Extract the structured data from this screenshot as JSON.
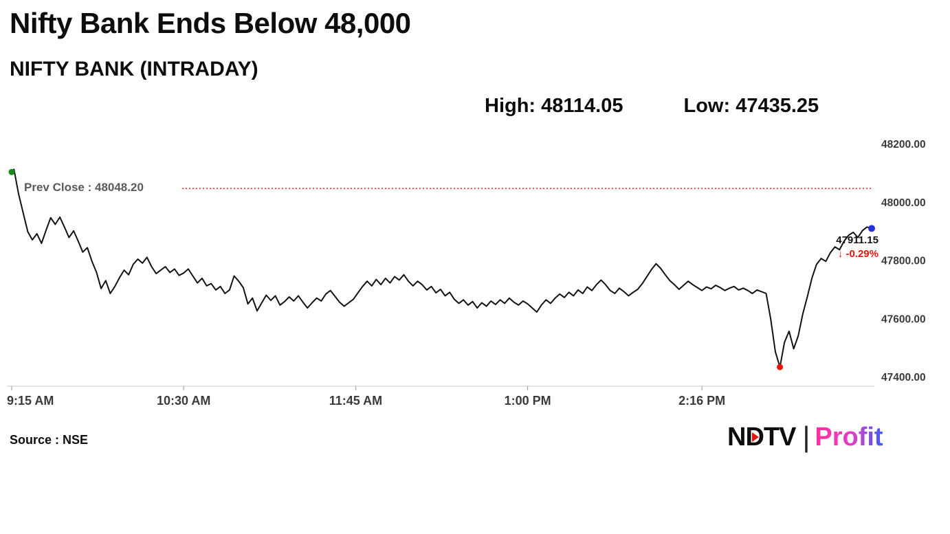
{
  "header": {
    "title": "Nifty Bank Ends Below 48,000",
    "subtitle": "NIFTY BANK (INTRADAY)",
    "high_label": "High: 48114.05",
    "low_label": "Low: 47435.25"
  },
  "footer": {
    "source": "Source : NSE",
    "logo": {
      "ndtv": "NDTV",
      "divider": "|",
      "profit": "Profit"
    }
  },
  "chart_data": {
    "type": "line",
    "title": "NIFTY BANK (INTRADAY)",
    "line_color": "#111111",
    "x_axis": {
      "tick_labels": [
        "9:15 AM",
        "10:30 AM",
        "11:45 AM",
        "1:00 PM",
        "2:16 PM"
      ],
      "tick_minutes": [
        0,
        75,
        150,
        225,
        301
      ],
      "domain_minutes": [
        0,
        375
      ]
    },
    "y_axis": {
      "tick_labels": [
        "48200.00",
        "48000.00",
        "47800.00",
        "47600.00",
        "47400.00"
      ],
      "tick_values": [
        48200,
        48000,
        47800,
        47600,
        47400
      ],
      "range": [
        47400,
        48200
      ],
      "grid": false
    },
    "prev_close": {
      "label": "Prev Close : 48048.20",
      "value": 48048.2,
      "color": "#d93025"
    },
    "last_price": {
      "label": "47911.15",
      "change_label": "↓ -0.29%",
      "value": 47911.15,
      "change_pct": -0.29
    },
    "high": 48114.05,
    "low": 47435.25,
    "markers": {
      "start_color": "#1a8a1a",
      "low_color": "#e8150d",
      "end_color": "#2431d8"
    },
    "series": [
      [
        0,
        48105
      ],
      [
        1,
        48114.05
      ],
      [
        3,
        48030
      ],
      [
        5,
        47965
      ],
      [
        7,
        47900
      ],
      [
        9,
        47872
      ],
      [
        11,
        47893
      ],
      [
        13,
        47860
      ],
      [
        15,
        47905
      ],
      [
        17,
        47948
      ],
      [
        19,
        47925
      ],
      [
        21,
        47950
      ],
      [
        23,
        47916
      ],
      [
        25,
        47880
      ],
      [
        27,
        47903
      ],
      [
        29,
        47868
      ],
      [
        31,
        47830
      ],
      [
        33,
        47845
      ],
      [
        35,
        47798
      ],
      [
        37,
        47760
      ],
      [
        39,
        47705
      ],
      [
        41,
        47732
      ],
      [
        43,
        47688
      ],
      [
        45,
        47712
      ],
      [
        47,
        47742
      ],
      [
        49,
        47768
      ],
      [
        51,
        47752
      ],
      [
        53,
        47788
      ],
      [
        55,
        47806
      ],
      [
        57,
        47792
      ],
      [
        59,
        47812
      ],
      [
        61,
        47780
      ],
      [
        63,
        47756
      ],
      [
        65,
        47768
      ],
      [
        67,
        47780
      ],
      [
        69,
        47760
      ],
      [
        71,
        47772
      ],
      [
        73,
        47750
      ],
      [
        75,
        47758
      ],
      [
        77,
        47772
      ],
      [
        79,
        47748
      ],
      [
        81,
        47724
      ],
      [
        83,
        47740
      ],
      [
        85,
        47714
      ],
      [
        87,
        47722
      ],
      [
        89,
        47700
      ],
      [
        91,
        47712
      ],
      [
        93,
        47688
      ],
      [
        95,
        47700
      ],
      [
        97,
        47748
      ],
      [
        99,
        47730
      ],
      [
        101,
        47708
      ],
      [
        103,
        47652
      ],
      [
        105,
        47672
      ],
      [
        107,
        47628
      ],
      [
        109,
        47655
      ],
      [
        111,
        47682
      ],
      [
        113,
        47664
      ],
      [
        115,
        47680
      ],
      [
        117,
        47648
      ],
      [
        119,
        47660
      ],
      [
        121,
        47676
      ],
      [
        123,
        47662
      ],
      [
        125,
        47680
      ],
      [
        127,
        47658
      ],
      [
        129,
        47638
      ],
      [
        131,
        47656
      ],
      [
        133,
        47672
      ],
      [
        135,
        47662
      ],
      [
        137,
        47686
      ],
      [
        139,
        47698
      ],
      [
        141,
        47678
      ],
      [
        143,
        47658
      ],
      [
        145,
        47644
      ],
      [
        147,
        47656
      ],
      [
        149,
        47668
      ],
      [
        151,
        47690
      ],
      [
        153,
        47712
      ],
      [
        155,
        47730
      ],
      [
        157,
        47714
      ],
      [
        159,
        47736
      ],
      [
        161,
        47718
      ],
      [
        163,
        47740
      ],
      [
        165,
        47724
      ],
      [
        167,
        47746
      ],
      [
        169,
        47734
      ],
      [
        171,
        47752
      ],
      [
        173,
        47730
      ],
      [
        175,
        47714
      ],
      [
        177,
        47730
      ],
      [
        179,
        47718
      ],
      [
        181,
        47700
      ],
      [
        183,
        47712
      ],
      [
        185,
        47690
      ],
      [
        187,
        47702
      ],
      [
        189,
        47680
      ],
      [
        191,
        47692
      ],
      [
        193,
        47668
      ],
      [
        195,
        47654
      ],
      [
        197,
        47666
      ],
      [
        199,
        47648
      ],
      [
        201,
        47660
      ],
      [
        203,
        47638
      ],
      [
        205,
        47656
      ],
      [
        207,
        47644
      ],
      [
        209,
        47662
      ],
      [
        211,
        47650
      ],
      [
        213,
        47666
      ],
      [
        215,
        47654
      ],
      [
        217,
        47672
      ],
      [
        219,
        47658
      ],
      [
        221,
        47648
      ],
      [
        223,
        47662
      ],
      [
        225,
        47652
      ],
      [
        227,
        47638
      ],
      [
        229,
        47624
      ],
      [
        231,
        47648
      ],
      [
        233,
        47666
      ],
      [
        235,
        47654
      ],
      [
        237,
        47672
      ],
      [
        239,
        47686
      ],
      [
        241,
        47674
      ],
      [
        243,
        47692
      ],
      [
        245,
        47680
      ],
      [
        247,
        47700
      ],
      [
        249,
        47688
      ],
      [
        251,
        47710
      ],
      [
        253,
        47698
      ],
      [
        255,
        47718
      ],
      [
        257,
        47734
      ],
      [
        259,
        47718
      ],
      [
        261,
        47698
      ],
      [
        263,
        47688
      ],
      [
        265,
        47706
      ],
      [
        267,
        47694
      ],
      [
        269,
        47680
      ],
      [
        271,
        47692
      ],
      [
        273,
        47702
      ],
      [
        275,
        47722
      ],
      [
        277,
        47746
      ],
      [
        279,
        47770
      ],
      [
        281,
        47790
      ],
      [
        283,
        47774
      ],
      [
        285,
        47752
      ],
      [
        287,
        47732
      ],
      [
        289,
        47718
      ],
      [
        291,
        47702
      ],
      [
        293,
        47716
      ],
      [
        295,
        47730
      ],
      [
        297,
        47718
      ],
      [
        299,
        47708
      ],
      [
        301,
        47698
      ],
      [
        303,
        47710
      ],
      [
        305,
        47704
      ],
      [
        307,
        47716
      ],
      [
        309,
        47708
      ],
      [
        311,
        47698
      ],
      [
        313,
        47706
      ],
      [
        315,
        47712
      ],
      [
        317,
        47700
      ],
      [
        319,
        47706
      ],
      [
        321,
        47698
      ],
      [
        323,
        47688
      ],
      [
        325,
        47700
      ],
      [
        327,
        47694
      ],
      [
        329,
        47688
      ],
      [
        331,
        47600
      ],
      [
        333,
        47488
      ],
      [
        335,
        47435.25
      ],
      [
        337,
        47520
      ],
      [
        339,
        47558
      ],
      [
        341,
        47498
      ],
      [
        343,
        47542
      ],
      [
        345,
        47618
      ],
      [
        347,
        47678
      ],
      [
        349,
        47742
      ],
      [
        351,
        47788
      ],
      [
        353,
        47808
      ],
      [
        355,
        47798
      ],
      [
        357,
        47828
      ],
      [
        359,
        47848
      ],
      [
        361,
        47838
      ],
      [
        363,
        47868
      ],
      [
        365,
        47888
      ],
      [
        367,
        47898
      ],
      [
        369,
        47880
      ],
      [
        371,
        47904
      ],
      [
        373,
        47916
      ],
      [
        375,
        47911.15
      ]
    ]
  }
}
